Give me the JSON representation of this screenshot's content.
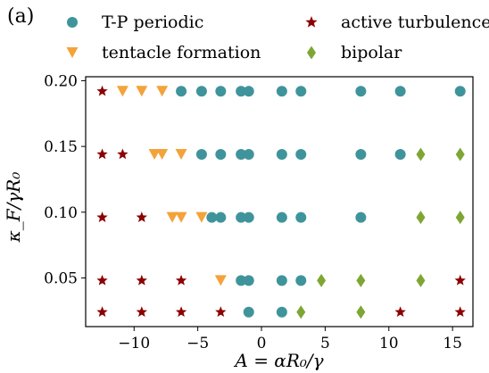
{
  "figure": {
    "panel_label": "(a)"
  },
  "legend": [
    {
      "key": "tp",
      "label": "T-P periodic",
      "marker": "circle",
      "color": "#3f949c"
    },
    {
      "key": "tent",
      "label": "tentacle formation",
      "marker": "triangle-down",
      "color": "#f4a23a"
    },
    {
      "key": "act",
      "label": "active turbulence",
      "marker": "star",
      "color": "#8b0000"
    },
    {
      "key": "bip",
      "label": "bipolar",
      "marker": "diamond",
      "color": "#7fa634"
    }
  ],
  "chart_data": {
    "type": "scatter",
    "xlabel": "A = αR₀/γ",
    "ylabel": "κ_F/γR₀",
    "xlim": [
      -13.8,
      16.6
    ],
    "ylim": [
      0.013,
      0.203
    ],
    "x_ticks": [
      -10,
      -5,
      0,
      5,
      10,
      15
    ],
    "x_tick_labels": [
      "−10",
      "−5",
      "0",
      "5",
      "10",
      "15"
    ],
    "y_ticks": [
      0.05,
      0.1,
      0.15,
      0.2
    ],
    "y_tick_labels": [
      "0.05",
      "0.10",
      "0.15",
      "0.20"
    ],
    "grid": false,
    "legend_placement": "above plot",
    "series": [
      {
        "name": "T-P periodic",
        "key": "tp",
        "points": [
          [
            -6.3,
            0.192
          ],
          [
            -4.7,
            0.192
          ],
          [
            -3.2,
            0.192
          ],
          [
            -1.6,
            0.192
          ],
          [
            -1.0,
            0.192
          ],
          [
            1.6,
            0.192
          ],
          [
            3.1,
            0.192
          ],
          [
            7.8,
            0.192
          ],
          [
            10.9,
            0.192
          ],
          [
            15.6,
            0.192
          ],
          [
            -4.7,
            0.144
          ],
          [
            -3.2,
            0.144
          ],
          [
            -1.6,
            0.144
          ],
          [
            -1.0,
            0.144
          ],
          [
            1.6,
            0.144
          ],
          [
            3.1,
            0.144
          ],
          [
            7.8,
            0.144
          ],
          [
            10.9,
            0.144
          ],
          [
            -3.9,
            0.096
          ],
          [
            -3.2,
            0.096
          ],
          [
            -1.6,
            0.096
          ],
          [
            -1.0,
            0.096
          ],
          [
            1.6,
            0.096
          ],
          [
            3.1,
            0.096
          ],
          [
            7.8,
            0.096
          ],
          [
            -1.6,
            0.048
          ],
          [
            -1.0,
            0.048
          ],
          [
            1.6,
            0.048
          ],
          [
            3.1,
            0.048
          ],
          [
            -1.0,
            0.024
          ],
          [
            1.6,
            0.024
          ]
        ]
      },
      {
        "name": "tentacle formation",
        "key": "tent",
        "points": [
          [
            -10.9,
            0.192
          ],
          [
            -9.4,
            0.192
          ],
          [
            -7.8,
            0.192
          ],
          [
            -8.4,
            0.144
          ],
          [
            -7.8,
            0.144
          ],
          [
            -6.3,
            0.144
          ],
          [
            -7.0,
            0.096
          ],
          [
            -6.3,
            0.096
          ],
          [
            -4.7,
            0.096
          ],
          [
            -3.2,
            0.048
          ]
        ]
      },
      {
        "name": "active turbulence",
        "key": "act",
        "points": [
          [
            -12.5,
            0.192
          ],
          [
            -12.5,
            0.144
          ],
          [
            -10.9,
            0.144
          ],
          [
            -12.5,
            0.096
          ],
          [
            -9.4,
            0.096
          ],
          [
            -12.5,
            0.048
          ],
          [
            -9.4,
            0.048
          ],
          [
            -6.3,
            0.048
          ],
          [
            15.6,
            0.048
          ],
          [
            -12.5,
            0.024
          ],
          [
            -9.4,
            0.024
          ],
          [
            -6.3,
            0.024
          ],
          [
            -3.2,
            0.024
          ],
          [
            10.9,
            0.024
          ],
          [
            15.6,
            0.024
          ]
        ]
      },
      {
        "name": "bipolar",
        "key": "bip",
        "points": [
          [
            12.5,
            0.144
          ],
          [
            15.6,
            0.144
          ],
          [
            12.5,
            0.096
          ],
          [
            15.6,
            0.096
          ],
          [
            4.7,
            0.048
          ],
          [
            7.8,
            0.048
          ],
          [
            12.5,
            0.048
          ],
          [
            3.1,
            0.024
          ],
          [
            7.8,
            0.024
          ]
        ]
      }
    ]
  }
}
